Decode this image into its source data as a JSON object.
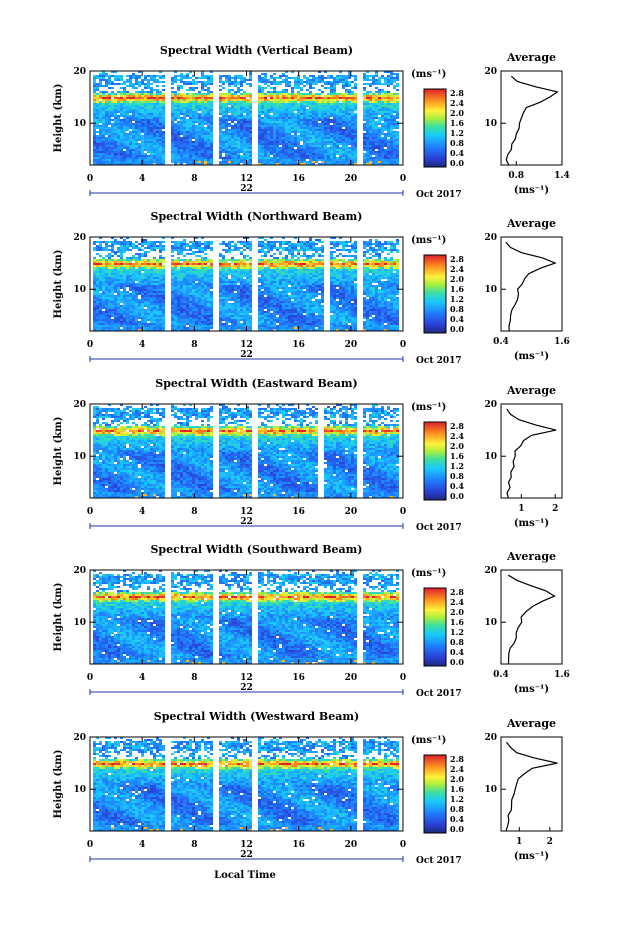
{
  "x_axis_label": "Local Time",
  "date_label": "Oct 2017",
  "day_label": "22",
  "colorbar": {
    "unit_label": "(ms⁻¹)",
    "ticks": [
      "0.0",
      "0.4",
      "0.8",
      "1.2",
      "1.6",
      "2.0",
      "2.4",
      "2.8"
    ]
  },
  "average_title": "Average",
  "average_xlabel": "(ms⁻¹)",
  "y_axis_label": "Height (km)",
  "chart_data": [
    {
      "type": "heatmap",
      "title": "Spectral Width (Vertical Beam)",
      "ylabel": "Height (km)",
      "xlabel": "Local Time",
      "x_ticks": [
        "0",
        "4",
        "8",
        "12",
        "16",
        "20",
        "0"
      ],
      "xlim": [
        0,
        24
      ],
      "ylim": [
        2,
        20
      ],
      "y_ticks": [
        "20",
        "10"
      ],
      "colorbar_range": [
        0.0,
        2.8
      ],
      "data_gaps_hours": [
        5.8,
        9.5,
        12.6,
        20.6
      ],
      "enhanced_layer_km": [
        14,
        16
      ],
      "profile": {
        "title": "Average",
        "xlim": [
          0.6,
          1.4
        ],
        "x_ticks": [
          "0.8",
          "1.4"
        ],
        "height_km": [
          2,
          3,
          4,
          5,
          6,
          7,
          8,
          9,
          10,
          11,
          12,
          13,
          14,
          15,
          16,
          17,
          18,
          19
        ],
        "mean": [
          0.7,
          0.68,
          0.7,
          0.72,
          0.75,
          0.78,
          0.8,
          0.82,
          0.85,
          0.86,
          0.88,
          0.95,
          1.1,
          1.25,
          1.32,
          1.05,
          0.8,
          0.72
        ]
      }
    },
    {
      "type": "heatmap",
      "title": "Spectral Width (Northward Beam)",
      "ylabel": "Height (km)",
      "xlabel": "Local Time",
      "x_ticks": [
        "0",
        "4",
        "8",
        "12",
        "16",
        "20",
        "0"
      ],
      "xlim": [
        0,
        24
      ],
      "ylim": [
        2,
        20
      ],
      "y_ticks": [
        "20",
        "10"
      ],
      "colorbar_range": [
        0.0,
        2.8
      ],
      "data_gaps_hours": [
        5.8,
        9.5,
        12.6,
        18.1,
        20.6
      ],
      "enhanced_layer_km": [
        14,
        16
      ],
      "profile": {
        "title": "Average",
        "xlim": [
          0.4,
          1.6
        ],
        "x_ticks": [
          "0.4",
          "1.6"
        ],
        "height_km": [
          2,
          3,
          4,
          5,
          6,
          7,
          8,
          9,
          10,
          11,
          12,
          13,
          14,
          15,
          16,
          17,
          18,
          19
        ],
        "mean": [
          0.55,
          0.55,
          0.58,
          0.6,
          0.62,
          0.65,
          0.7,
          0.72,
          0.75,
          0.8,
          0.85,
          0.95,
          1.15,
          1.45,
          1.2,
          0.8,
          0.6,
          0.5
        ]
      }
    },
    {
      "type": "heatmap",
      "title": "Spectral Width (Eastward Beam)",
      "ylabel": "Height (km)",
      "xlabel": "Local Time",
      "x_ticks": [
        "0",
        "4",
        "8",
        "12",
        "16",
        "20",
        "0"
      ],
      "xlim": [
        0,
        24
      ],
      "ylim": [
        2,
        20
      ],
      "y_ticks": [
        "20",
        "10"
      ],
      "colorbar_range": [
        0.0,
        2.8
      ],
      "data_gaps_hours": [
        5.8,
        9.5,
        12.6,
        17.6,
        20.6
      ],
      "enhanced_layer_km": [
        14,
        16
      ],
      "profile": {
        "title": "Average",
        "xlim": [
          0.4,
          2.2
        ],
        "x_ticks": [
          "1",
          "2"
        ],
        "height_km": [
          2,
          3,
          4,
          5,
          6,
          7,
          8,
          9,
          10,
          11,
          12,
          13,
          14,
          15,
          16,
          17,
          18,
          19
        ],
        "mean": [
          0.6,
          0.62,
          0.65,
          0.65,
          0.7,
          0.72,
          0.75,
          0.78,
          0.8,
          0.85,
          0.95,
          1.1,
          1.3,
          2.0,
          1.4,
          0.9,
          0.7,
          0.6
        ]
      }
    },
    {
      "type": "heatmap",
      "title": "Spectral Width (Southward Beam)",
      "ylabel": "Height (km)",
      "xlabel": "Local Time",
      "x_ticks": [
        "0",
        "4",
        "8",
        "12",
        "16",
        "20",
        "0"
      ],
      "xlim": [
        0,
        24
      ],
      "ylim": [
        2,
        20
      ],
      "y_ticks": [
        "20",
        "10"
      ],
      "colorbar_range": [
        0.0,
        2.8
      ],
      "data_gaps_hours": [
        5.8,
        9.5,
        12.6,
        20.6
      ],
      "enhanced_layer_km": [
        14,
        16
      ],
      "profile": {
        "title": "Average",
        "xlim": [
          0.4,
          1.6
        ],
        "x_ticks": [
          "0.4",
          "1.6"
        ],
        "height_km": [
          2,
          3,
          4,
          5,
          6,
          7,
          8,
          9,
          10,
          11,
          12,
          13,
          14,
          15,
          16,
          17,
          18,
          19
        ],
        "mean": [
          0.55,
          0.56,
          0.58,
          0.6,
          0.65,
          0.7,
          0.72,
          0.75,
          0.78,
          0.82,
          0.88,
          1.0,
          1.2,
          1.45,
          1.3,
          1.0,
          0.7,
          0.55
        ]
      }
    },
    {
      "type": "heatmap",
      "title": "Spectral Width (Westward Beam)",
      "ylabel": "Height (km)",
      "xlabel": "Local Time",
      "x_ticks": [
        "0",
        "4",
        "8",
        "12",
        "16",
        "20",
        "0"
      ],
      "xlim": [
        0,
        24
      ],
      "ylim": [
        2,
        20
      ],
      "y_ticks": [
        "20",
        "10"
      ],
      "colorbar_range": [
        0.0,
        2.8
      ],
      "data_gaps_hours": [
        5.8,
        9.5,
        12.6,
        20.6
      ],
      "enhanced_layer_km": [
        14,
        16
      ],
      "profile": {
        "title": "Average",
        "xlim": [
          0.4,
          2.4
        ],
        "x_ticks": [
          "1",
          "2"
        ],
        "height_km": [
          2,
          3,
          4,
          5,
          6,
          7,
          8,
          9,
          10,
          11,
          12,
          13,
          14,
          15,
          16,
          17,
          18,
          19
        ],
        "mean": [
          0.6,
          0.62,
          0.64,
          0.66,
          0.7,
          0.72,
          0.75,
          0.8,
          0.85,
          0.9,
          1.0,
          1.15,
          1.4,
          2.2,
          1.5,
          0.9,
          0.7,
          0.6
        ]
      }
    }
  ]
}
